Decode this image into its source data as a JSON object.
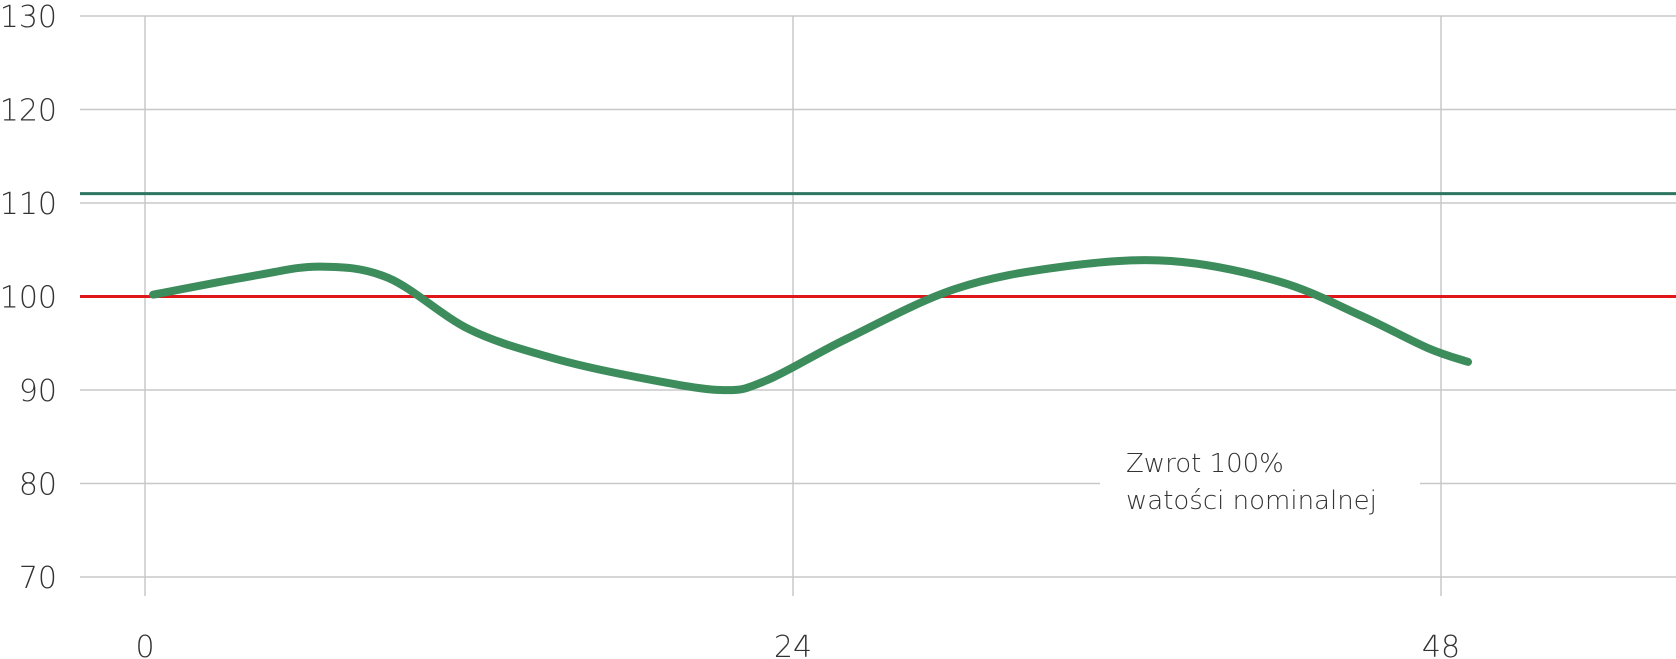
{
  "chart_data": {
    "type": "line",
    "title": "",
    "xlabel": "",
    "ylabel": "",
    "xlim": [
      -1,
      60
    ],
    "ylim": [
      70,
      130
    ],
    "x_ticks": [
      "0",
      "24",
      "48"
    ],
    "y_ticks": [
      "70",
      "80",
      "90",
      "100",
      "110",
      "120",
      "130"
    ],
    "grid": true,
    "series": [
      {
        "color": "#3d8c5c",
        "x": [
          0.3,
          4,
          6.5,
          9,
          12,
          15,
          18,
          21.3,
          23,
          26,
          30,
          34,
          38,
          42,
          45,
          47.5,
          49
        ],
        "y": [
          100.2,
          102.2,
          103.2,
          102.0,
          96.5,
          93.5,
          91.5,
          90.0,
          91.0,
          95.5,
          100.8,
          103.2,
          103.8,
          101.6,
          98.0,
          94.5,
          93.0
        ]
      }
    ],
    "reference_lines": [
      {
        "y": 111,
        "color": "#2e7561"
      },
      {
        "y": 100,
        "color": "#e0161a"
      }
    ],
    "annotation": {
      "line1": "Zwrot 100%",
      "line2": "watości nominalnej"
    }
  }
}
